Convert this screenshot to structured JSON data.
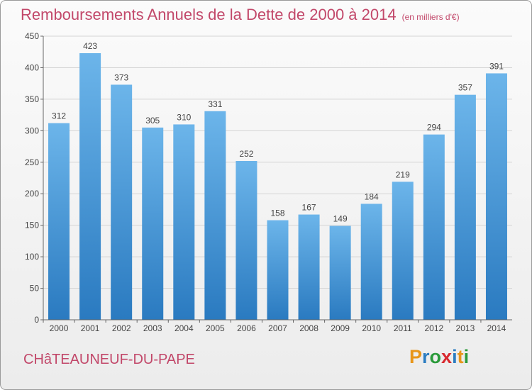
{
  "header": {
    "title": "Remboursements Annuels de la Dette de 2000 à 2014",
    "unit": "(en milliers d'€)"
  },
  "footer": {
    "commune": "CHâTEAUNEUF-DU-PAPE"
  },
  "logo": {
    "letters": [
      "P",
      "r",
      "o",
      "x",
      "i",
      "t",
      "i"
    ],
    "colors": [
      "#e8961a",
      "#2b7cc1",
      "#2b9a3a",
      "#d8282e",
      "#2b7cc1",
      "#e8961a",
      "#2b9a3a"
    ]
  },
  "colors": {
    "bar_light": "#6cb5ea",
    "bar_dark": "#2a7ac0",
    "grid": "#d4d4d4",
    "text": "#444444"
  },
  "chart_data": {
    "type": "bar",
    "categories": [
      "2000",
      "2001",
      "2002",
      "2003",
      "2004",
      "2005",
      "2006",
      "2007",
      "2008",
      "2009",
      "2010",
      "2011",
      "2012",
      "2013",
      "2014"
    ],
    "values": [
      312,
      423,
      373,
      305,
      310,
      331,
      252,
      158,
      167,
      149,
      184,
      219,
      294,
      357,
      391
    ],
    "yticks": [
      0,
      50,
      100,
      150,
      200,
      250,
      300,
      350,
      400,
      450
    ],
    "ylim": [
      0,
      450
    ],
    "grid": true,
    "legend": "none"
  }
}
